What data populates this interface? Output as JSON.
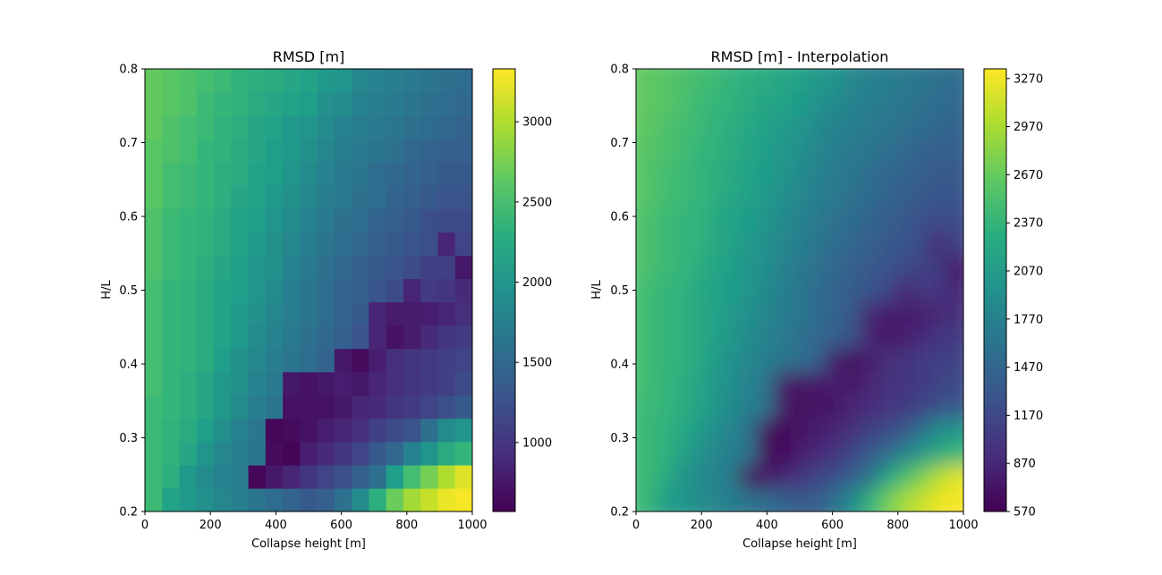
{
  "chart_data": [
    {
      "type": "heatmap",
      "title": "RMSD [m]",
      "xlabel": "Collapse height [m]",
      "ylabel": "H/L",
      "xlim": [
        0,
        1000
      ],
      "ylim": [
        0.2,
        0.8
      ],
      "x_ticks": [
        "0",
        "200",
        "400",
        "600",
        "800",
        "1000"
      ],
      "y_ticks": [
        "0.2",
        "0.3",
        "0.4",
        "0.5",
        "0.6",
        "0.7",
        "0.8"
      ],
      "colorbar": {
        "min": 570,
        "max": 3330,
        "ticks": [
          "1000",
          "1500",
          "2000",
          "2500",
          "3000"
        ]
      },
      "colormap": "viridis",
      "grid_cols": 19,
      "grid_rows": 19,
      "cell_values_bottom_to_top": [
        [
          2450,
          2150,
          2050,
          1950,
          1850,
          1750,
          1650,
          1550,
          1450,
          1350,
          1400,
          1600,
          1900,
          2300,
          2700,
          2950,
          3100,
          3250,
          3300
        ],
        [
          2450,
          2300,
          2050,
          1900,
          1800,
          1750,
          620,
          750,
          850,
          1000,
          1150,
          1250,
          1400,
          1600,
          2100,
          2500,
          2750,
          3000,
          3200
        ],
        [
          2450,
          2350,
          2200,
          2000,
          1850,
          1750,
          1650,
          650,
          600,
          800,
          900,
          1000,
          1150,
          1350,
          1500,
          1800,
          2000,
          2250,
          2400
        ],
        [
          2450,
          2350,
          2250,
          2100,
          1950,
          1800,
          1650,
          620,
          650,
          700,
          800,
          850,
          950,
          1100,
          1200,
          1300,
          1600,
          1900,
          2000
        ],
        [
          2450,
          2400,
          2300,
          2200,
          2050,
          1900,
          1750,
          1650,
          700,
          700,
          700,
          750,
          850,
          900,
          1000,
          1050,
          1150,
          1250,
          1350
        ],
        [
          2500,
          2400,
          2300,
          2200,
          2050,
          1950,
          1800,
          1700,
          750,
          700,
          750,
          800,
          750,
          850,
          950,
          1000,
          1050,
          1100,
          1200
        ],
        [
          2500,
          2400,
          2350,
          2250,
          2100,
          1950,
          1850,
          1750,
          1650,
          1550,
          1450,
          750,
          650,
          800,
          950,
          1000,
          1050,
          1100,
          1150
        ],
        [
          2500,
          2400,
          2350,
          2250,
          2150,
          2050,
          1900,
          1800,
          1700,
          1600,
          1500,
          1400,
          1300,
          850,
          700,
          780,
          900,
          1000,
          1050
        ],
        [
          2500,
          2400,
          2350,
          2250,
          2150,
          2050,
          1950,
          1850,
          1750,
          1650,
          1550,
          1450,
          1350,
          850,
          780,
          780,
          800,
          850,
          950
        ],
        [
          2500,
          2400,
          2350,
          2250,
          2150,
          2100,
          2000,
          1900,
          1750,
          1650,
          1550,
          1450,
          1400,
          1300,
          1200,
          850,
          1050,
          1000,
          900
        ],
        [
          2550,
          2450,
          2400,
          2300,
          2200,
          2100,
          2000,
          1950,
          1800,
          1700,
          1600,
          1500,
          1400,
          1350,
          1300,
          1200,
          1100,
          1100,
          750
        ],
        [
          2550,
          2450,
          2400,
          2350,
          2250,
          2150,
          2050,
          1950,
          1850,
          1750,
          1650,
          1550,
          1500,
          1400,
          1350,
          1300,
          1250,
          850,
          1150
        ],
        [
          2550,
          2450,
          2400,
          2350,
          2250,
          2150,
          2100,
          2000,
          1900,
          1800,
          1700,
          1600,
          1550,
          1450,
          1400,
          1350,
          1250,
          1200,
          1200
        ],
        [
          2600,
          2500,
          2450,
          2400,
          2300,
          2200,
          2150,
          2050,
          1950,
          1850,
          1750,
          1700,
          1600,
          1550,
          1450,
          1400,
          1350,
          1300,
          1300
        ],
        [
          2600,
          2500,
          2450,
          2400,
          2300,
          2250,
          2150,
          2100,
          2000,
          1900,
          1800,
          1700,
          1650,
          1550,
          1500,
          1450,
          1400,
          1350,
          1350
        ],
        [
          2600,
          2550,
          2500,
          2400,
          2350,
          2250,
          2200,
          2100,
          2050,
          1950,
          1850,
          1750,
          1700,
          1650,
          1600,
          1500,
          1450,
          1400,
          1400
        ],
        [
          2650,
          2550,
          2500,
          2450,
          2350,
          2300,
          2200,
          2150,
          2050,
          2000,
          1900,
          1800,
          1750,
          1700,
          1650,
          1600,
          1550,
          1500,
          1450
        ],
        [
          2650,
          2600,
          2550,
          2450,
          2400,
          2350,
          2250,
          2200,
          2150,
          2100,
          1950,
          1900,
          1800,
          1750,
          1700,
          1650,
          1600,
          1550,
          1500
        ],
        [
          2650,
          2600,
          2550,
          2500,
          2450,
          2350,
          2300,
          2250,
          2200,
          2150,
          2050,
          2000,
          1850,
          1800,
          1750,
          1700,
          1650,
          1600,
          1550
        ]
      ]
    },
    {
      "type": "heatmap",
      "title": "RMSD [m] - Interpolation",
      "xlabel": "Collapse height [m]",
      "ylabel": "H/L",
      "xlim": [
        0,
        1000
      ],
      "ylim": [
        0.2,
        0.8
      ],
      "x_ticks": [
        "0",
        "200",
        "400",
        "600",
        "800",
        "1000"
      ],
      "y_ticks": [
        "0.2",
        "0.3",
        "0.4",
        "0.5",
        "0.6",
        "0.7",
        "0.8"
      ],
      "colorbar": {
        "min": 570,
        "max": 3330,
        "ticks": [
          "570",
          "870",
          "1170",
          "1470",
          "1770",
          "2070",
          "2370",
          "2670",
          "2970",
          "3270"
        ]
      },
      "colormap": "viridis",
      "interpolated": true
    }
  ]
}
